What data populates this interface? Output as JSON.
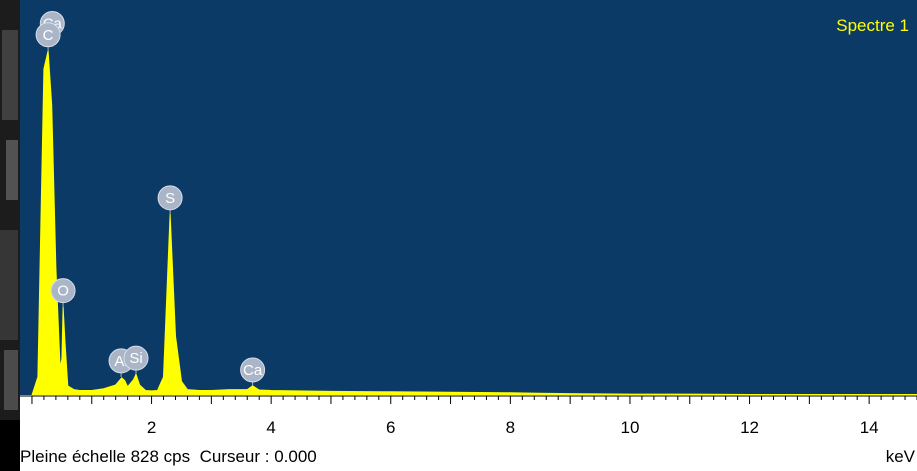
{
  "spectrum_label": "Spectre 1",
  "status": {
    "scale_text": "Pleine échelle 828 cps",
    "cursor_text": "Curseur : 0.000",
    "unit": "keV"
  },
  "colors": {
    "plot_background": "#0b3a66",
    "spectrum": "#ffff00",
    "element_marker": "#aab6c8"
  },
  "chart_data": {
    "type": "area",
    "xlabel": "keV",
    "ylabel": "",
    "xlim": [
      -0.2,
      14.8
    ],
    "ylim": [
      0,
      828
    ],
    "ticks": [
      2,
      4,
      6,
      8,
      10,
      12,
      14
    ],
    "x": [
      0.0,
      0.1,
      0.2,
      0.27,
      0.33,
      0.4,
      0.47,
      0.5,
      0.52,
      0.55,
      0.6,
      0.7,
      0.8,
      1.0,
      1.2,
      1.4,
      1.5,
      1.55,
      1.6,
      1.7,
      1.74,
      1.8,
      1.9,
      2.0,
      2.1,
      2.2,
      2.31,
      2.4,
      2.5,
      2.6,
      2.8,
      3.0,
      3.3,
      3.6,
      3.69,
      3.8,
      4.0,
      5.0,
      6.0,
      7.0,
      8.0,
      8.5,
      9.0,
      10.0,
      11.0,
      12.0,
      13.0,
      14.0,
      14.8
    ],
    "y": [
      0,
      40,
      720,
      760,
      640,
      280,
      60,
      80,
      195,
      120,
      20,
      12,
      10,
      10,
      14,
      22,
      38,
      32,
      18,
      34,
      46,
      22,
      10,
      9,
      10,
      40,
      400,
      130,
      30,
      12,
      10,
      10,
      12,
      12,
      20,
      11,
      10,
      8,
      7,
      6,
      5,
      4,
      3,
      2,
      2,
      1,
      1,
      1,
      1
    ],
    "peaks": [
      {
        "element": "Ca",
        "x": 0.34,
        "y": 785
      },
      {
        "element": "C",
        "x": 0.27,
        "y": 760
      },
      {
        "element": "O",
        "x": 0.52,
        "y": 195
      },
      {
        "element": "Al",
        "x": 1.49,
        "y": 40
      },
      {
        "element": "Si",
        "x": 1.74,
        "y": 46
      },
      {
        "element": "S",
        "x": 2.31,
        "y": 400
      },
      {
        "element": "Ca",
        "x": 3.69,
        "y": 20
      }
    ]
  }
}
